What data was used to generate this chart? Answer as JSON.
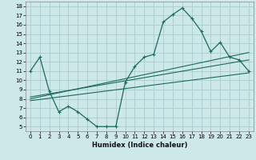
{
  "xlabel": "Humidex (Indice chaleur)",
  "bg_color": "#cce8e8",
  "grid_color": "#aacccc",
  "line_color": "#1a6b5a",
  "xlim": [
    -0.5,
    23.5
  ],
  "ylim": [
    4.5,
    18.5
  ],
  "xticks": [
    0,
    1,
    2,
    3,
    4,
    5,
    6,
    7,
    8,
    9,
    10,
    11,
    12,
    13,
    14,
    15,
    16,
    17,
    18,
    19,
    20,
    21,
    22,
    23
  ],
  "yticks": [
    5,
    6,
    7,
    8,
    9,
    10,
    11,
    12,
    13,
    14,
    15,
    16,
    17,
    18
  ],
  "curve1_x": [
    0,
    1,
    2,
    3,
    4,
    5,
    6,
    7,
    8,
    9,
    10,
    11,
    12,
    13,
    14,
    15,
    16,
    17,
    18,
    19,
    20,
    21,
    22,
    23
  ],
  "curve1_y": [
    11.0,
    12.5,
    8.8,
    6.6,
    7.2,
    6.6,
    5.8,
    5.0,
    5.0,
    5.0,
    9.8,
    11.5,
    12.5,
    12.8,
    16.3,
    17.1,
    17.8,
    16.7,
    15.3,
    13.1,
    14.1,
    12.5,
    12.2,
    11.0
  ],
  "line1_x": [
    0,
    23
  ],
  "line1_y": [
    8.0,
    13.0
  ],
  "line2_x": [
    0,
    23
  ],
  "line2_y": [
    8.2,
    12.2
  ],
  "line3_x": [
    0,
    23
  ],
  "line3_y": [
    7.8,
    10.8
  ]
}
